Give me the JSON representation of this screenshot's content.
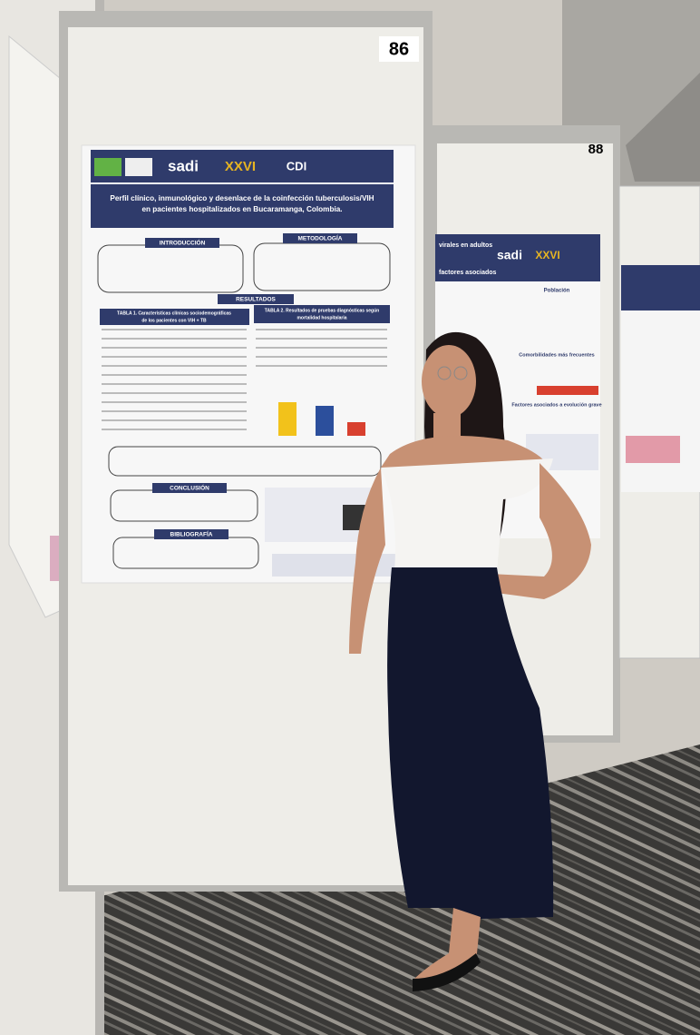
{
  "boards": [
    {
      "number": "86"
    },
    {
      "number": "88"
    }
  ],
  "poster_main": {
    "logos": [
      "sadi",
      "XXVI",
      "CDI"
    ],
    "title_lines": [
      "Perfil clínico, inmunológico y desenlace de la coinfección tuberculosis/VIH",
      "en pacientes hospitalizados en Bucaramanga, Colombia."
    ],
    "sections": [
      "INTRODUCCIÓN",
      "METODOLOGÍA",
      "RESULTADOS",
      "CONCLUSIÓN",
      "BIBLIOGRAFÍA"
    ],
    "table_titles": [
      [
        "TABLA 1. Características clínicas sociodemográficas",
        "de los pacientes con VIH + TB"
      ],
      [
        "TABLA 2. Resultados de pruebas diagnósticas según",
        "mortalidad hospitalaria"
      ]
    ]
  },
  "poster_second": {
    "logos": [
      "sadi",
      "XXVI"
    ],
    "title_lines": [
      "virales en adultos",
      "factores asociados"
    ],
    "headings": [
      "Población",
      "Comorbilidades más frecuentes",
      "Factores asociados a evolución grave"
    ]
  }
}
